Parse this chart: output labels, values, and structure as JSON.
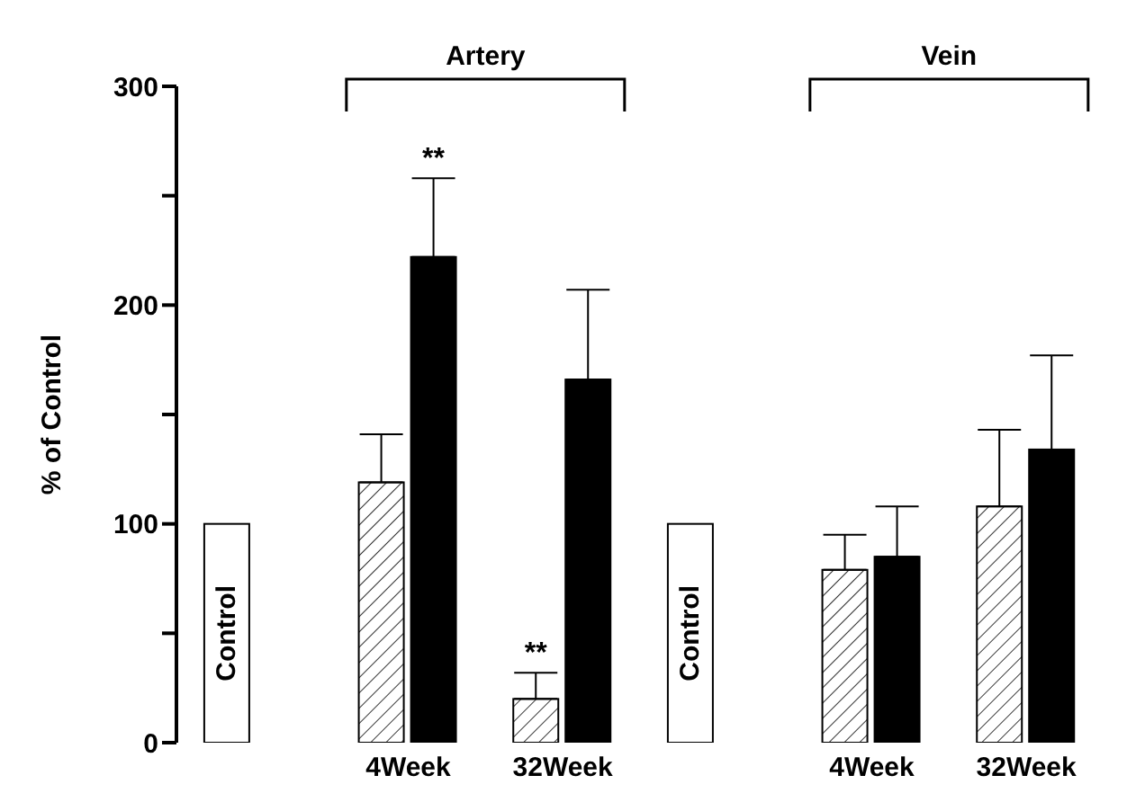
{
  "chart_data": {
    "type": "bar",
    "ylabel": "% of Control",
    "categories": [
      null,
      "4Week",
      "32Week",
      null,
      "4Week",
      "32Week"
    ],
    "series": [
      {
        "name": "Control",
        "color": "#ffffff",
        "values": [
          100,
          null,
          null,
          100,
          null,
          null
        ]
      },
      {
        "color": "#ffffff",
        "values": [
          null,
          119,
          20,
          null,
          79,
          108
        ],
        "errors": [
          null,
          [
            119,
            141
          ],
          [
            20,
            32
          ],
          null,
          [
            79,
            95
          ],
          [
            108,
            143
          ]
        ],
        "value_labels": [
          null,
          null,
          "**",
          null,
          null,
          null
        ]
      },
      {
        "color": "#000000",
        "values": [
          null,
          222,
          166,
          null,
          85,
          134
        ],
        "errors": [
          null,
          [
            222,
            258
          ],
          [
            166,
            207
          ],
          null,
          [
            85,
            108
          ],
          [
            134,
            177
          ]
        ],
        "value_labels": [
          null,
          "**",
          null,
          null,
          null,
          null
        ]
      }
    ],
    "ylim": [
      0,
      300
    ],
    "yticks": [
      0,
      {
        "value": 50,
        "label": null
      },
      100,
      {
        "value": 150,
        "label": null
      },
      200,
      {
        "value": 250,
        "label": null
      },
      300
    ],
    "annotations": [
      "Artery",
      "Vein"
    ]
  }
}
